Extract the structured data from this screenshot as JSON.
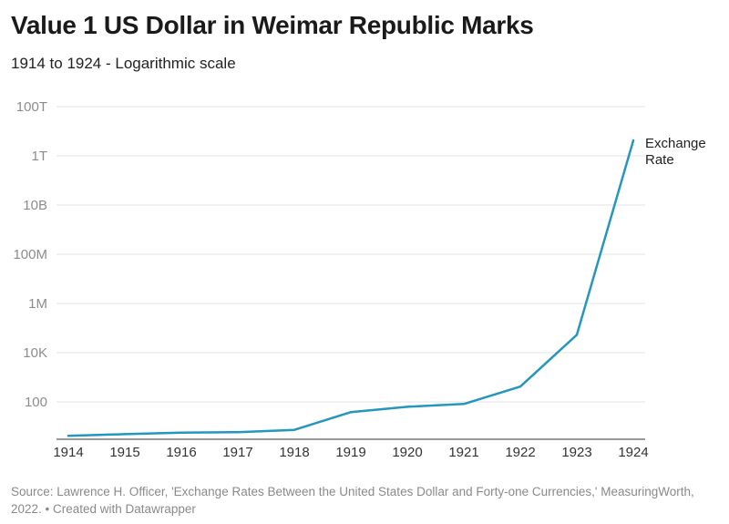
{
  "title": "Value 1 US Dollar in Weimar Republic Marks",
  "subtitle": "1914 to 1924 - Logarithmic scale",
  "source": "Source: Lawrence H. Officer, 'Exchange Rates Between the United States Dollar and Forty-one Currencies,' MeasuringWorth, 2022. • Created with Datawrapper",
  "chart_data": {
    "type": "line",
    "title": "Value 1 US Dollar in Weimar Republic Marks",
    "subtitle": "1914 to 1924 - Logarithmic scale",
    "y_scale": "log",
    "x": [
      1914,
      1915,
      1916,
      1917,
      1918,
      1919,
      1920,
      1921,
      1922,
      1923,
      1924
    ],
    "x_tick_labels": [
      "1914",
      "1915",
      "1916",
      "1917",
      "1918",
      "1919",
      "1920",
      "1921",
      "1922",
      "1923",
      "1924"
    ],
    "y_ticks": [
      100,
      10000,
      1000000,
      100000000,
      10000000000,
      1000000000000,
      100000000000000
    ],
    "y_tick_labels": [
      "100",
      "10K",
      "1M",
      "100M",
      "10B",
      "1T",
      "100T"
    ],
    "ylim": [
      4,
      100000000000000
    ],
    "grid": true,
    "series": [
      {
        "name": "Exchange Rate",
        "label_lines": [
          "Exchange",
          "Rate"
        ],
        "color": "#2596be",
        "values": [
          4.2,
          4.9,
          5.6,
          5.9,
          7.3,
          38,
          63,
          82,
          420,
          53000,
          4200000000000
        ]
      }
    ]
  }
}
